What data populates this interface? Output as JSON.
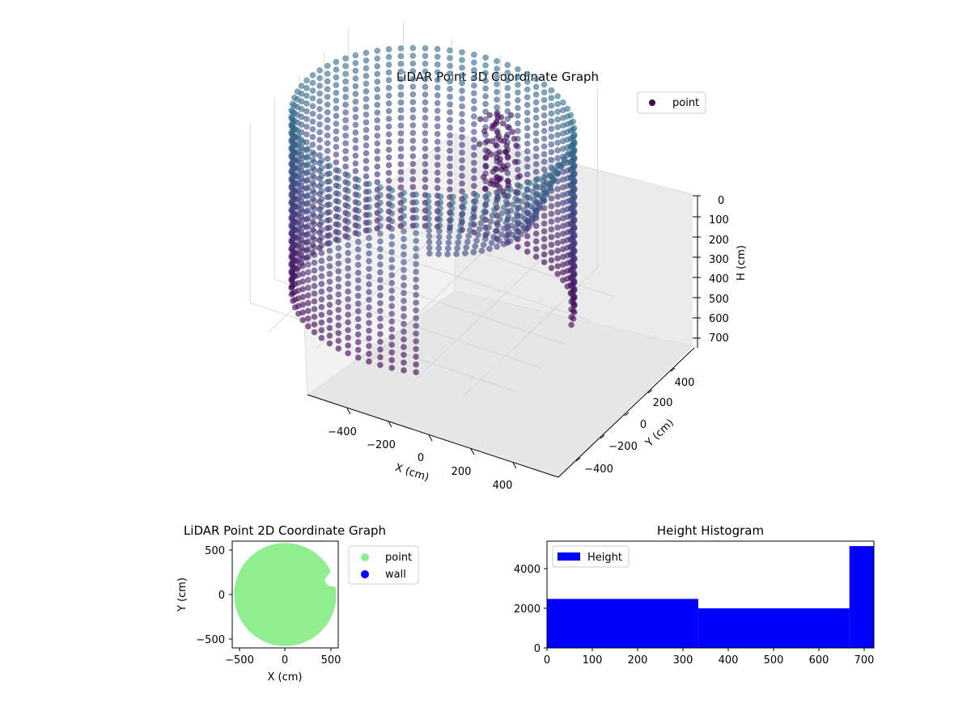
{
  "chart_data": [
    {
      "type": "scatter",
      "projection": "3d",
      "title": "LiDAR Point 3D Coordinate Graph",
      "xlabel": "X (cm)",
      "ylabel": "Y (cm)",
      "zlabel": "H (cm)",
      "xlim": [
        -550,
        550
      ],
      "ylim": [
        -550,
        550
      ],
      "zlim": [
        0,
        730
      ],
      "z_inverted": true,
      "xticks": [
        "−400",
        "−200",
        "0",
        "200",
        "400"
      ],
      "yticks": [
        "−400",
        "−200",
        "0",
        "200",
        "400"
      ],
      "zticks": [
        "0",
        "100",
        "200",
        "300",
        "400",
        "500",
        "600",
        "700"
      ],
      "legend": [
        {
          "label": "point",
          "color": "#440154"
        }
      ],
      "legend_position": "upper-right",
      "colormap": "viridis (by height)",
      "structure": {
        "wall_radius": 520,
        "wall_height": 720,
        "rings": 24,
        "azimuth_columns": 72,
        "opening_azimuth_deg": [
          -70,
          15
        ],
        "inner_object_center": [
          120,
          300,
          90
        ]
      }
    },
    {
      "type": "scatter",
      "title": "LiDAR Point 2D Coordinate Graph",
      "xlabel": "X (cm)",
      "ylabel": "Y (cm)",
      "xlim": [
        -580,
        580
      ],
      "ylim": [
        -580,
        580
      ],
      "xticks": [
        "−500",
        "0",
        "500"
      ],
      "yticks": [
        "−500",
        "0",
        "500"
      ],
      "legend_position": "outside-right",
      "series": [
        {
          "name": "point",
          "color": "#90ee90"
        },
        {
          "name": "wall",
          "color": "#0000ff"
        }
      ]
    },
    {
      "type": "bar",
      "subtype": "histogram",
      "title": "Height Histogram",
      "xlim": [
        0,
        720
      ],
      "ylim": [
        0,
        5400
      ],
      "xticks": [
        "0",
        "100",
        "200",
        "300",
        "400",
        "500",
        "600",
        "700"
      ],
      "yticks": [
        "0",
        "2000",
        "4000"
      ],
      "legend": [
        {
          "label": "Height",
          "color": "#0000ff"
        }
      ],
      "legend_position": "upper-left",
      "bins": [
        {
          "from": 0,
          "to": 333,
          "count": 2480
        },
        {
          "from": 333,
          "to": 666,
          "count": 2000
        },
        {
          "from": 666,
          "to": 720,
          "count": 5150
        }
      ]
    }
  ]
}
